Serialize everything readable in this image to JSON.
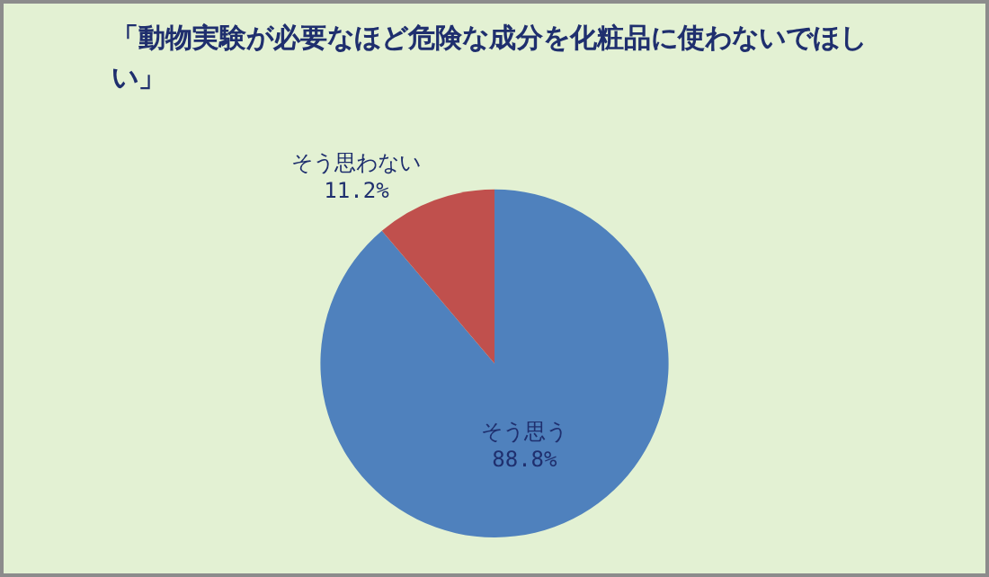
{
  "chart_data": {
    "type": "pie",
    "title": "「動物実験が必要なほど危険な成分を化粧品に使わないでほしい」",
    "categories": [
      "そう思う",
      "そう思わない"
    ],
    "values": [
      88.8,
      11.2
    ],
    "colors": [
      "#4f81bd",
      "#c0504d"
    ],
    "value_labels": [
      "88.8%",
      "11.2%"
    ],
    "legend": false
  }
}
